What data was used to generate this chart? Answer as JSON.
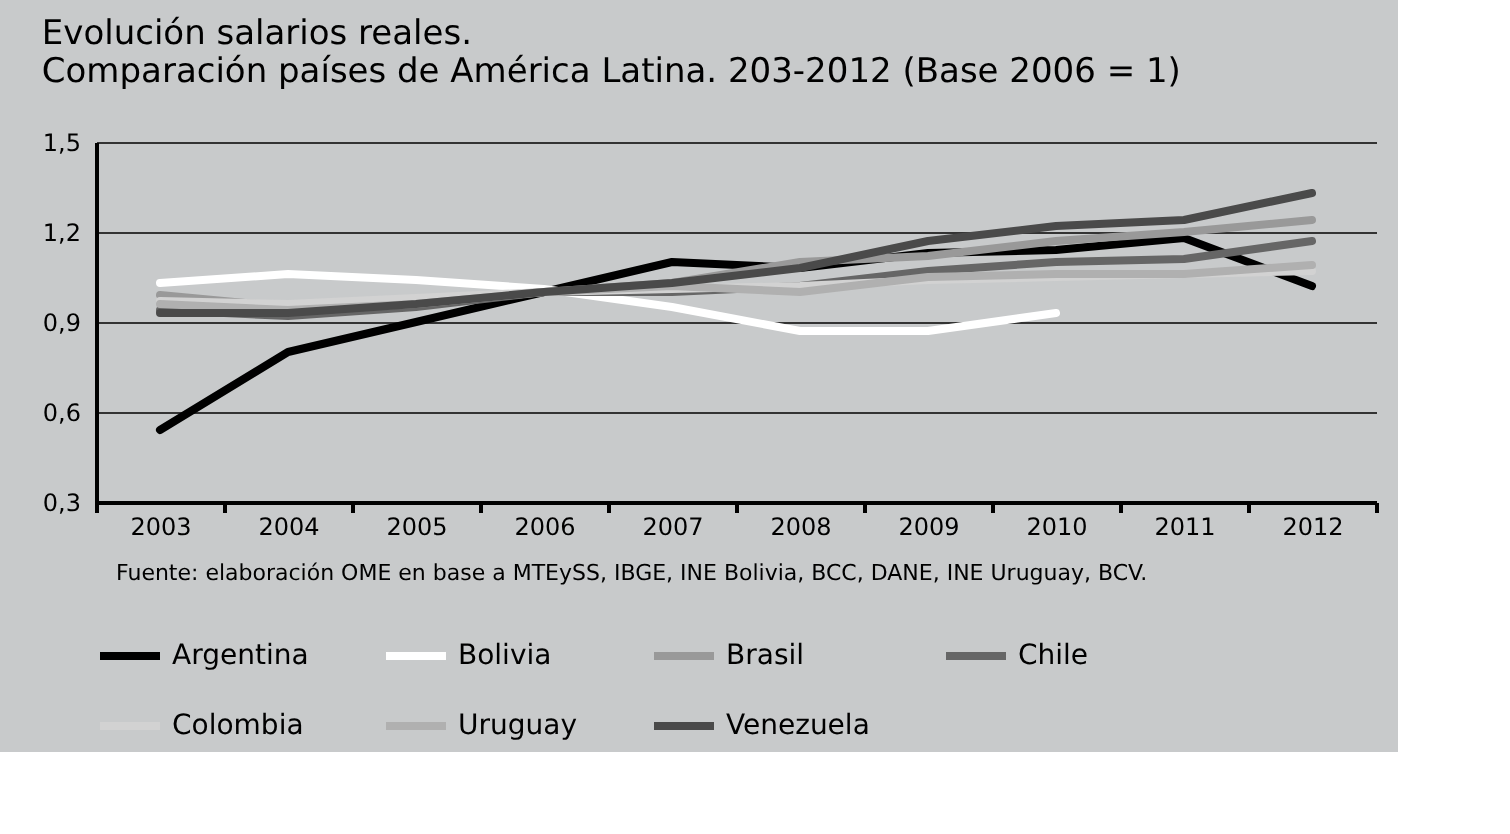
{
  "chart_data": {
    "type": "line",
    "title": [
      "Evolución salarios reales.",
      "Comparación países de América Latina. 203-2012 (Base 2006 = 1)"
    ],
    "categories": [
      "2003",
      "2004",
      "2005",
      "2006",
      "2007",
      "2008",
      "2009",
      "2010",
      "2011",
      "2012"
    ],
    "series": [
      {
        "name": "Argentina",
        "color": "#000000",
        "values": [
          0.54,
          0.8,
          0.9,
          1.0,
          1.1,
          1.08,
          1.13,
          1.14,
          1.18,
          1.02
        ]
      },
      {
        "name": "Bolivia",
        "color": "#ffffff",
        "values": [
          1.03,
          1.06,
          1.04,
          1.01,
          0.95,
          0.87,
          0.87,
          0.93,
          null,
          null
        ]
      },
      {
        "name": "Brasil",
        "color": "#999999",
        "values": [
          0.99,
          0.95,
          0.97,
          1.0,
          1.03,
          1.1,
          1.12,
          1.17,
          1.2,
          1.24
        ]
      },
      {
        "name": "Chile",
        "color": "#666666",
        "values": [
          0.94,
          0.92,
          0.95,
          1.0,
          1.0,
          1.02,
          1.07,
          1.1,
          1.11,
          1.17
        ]
      },
      {
        "name": "Colombia",
        "color": "#d2d2d2",
        "values": [
          0.97,
          0.96,
          0.98,
          1.0,
          1.01,
          1.02,
          1.04,
          1.05,
          1.06,
          1.07
        ]
      },
      {
        "name": "Uruguay",
        "color": "#b0b0b0",
        "values": [
          0.96,
          0.94,
          0.96,
          1.0,
          1.02,
          1.0,
          1.05,
          1.06,
          1.06,
          1.09
        ]
      },
      {
        "name": "Venezuela",
        "color": "#4a4a4a",
        "values": [
          0.93,
          0.93,
          0.96,
          1.0,
          1.03,
          1.08,
          1.17,
          1.22,
          1.24,
          1.33
        ]
      }
    ],
    "ylim": [
      0.3,
      1.5
    ],
    "yticks": [
      {
        "value": 0.3,
        "label": "0,3"
      },
      {
        "value": 0.6,
        "label": "0,6"
      },
      {
        "value": 0.9,
        "label": "0,9"
      },
      {
        "value": 1.2,
        "label": "1,2"
      },
      {
        "value": 1.5,
        "label": "1,5"
      }
    ],
    "grid": "y",
    "legend": "bottom",
    "line_style": "solid",
    "annotations": [
      "Fuente: elaboración OME en base a MTEySS, IBGE, INE Bolivia, BCC, DANE, INE Uruguay, BCV."
    ]
  }
}
